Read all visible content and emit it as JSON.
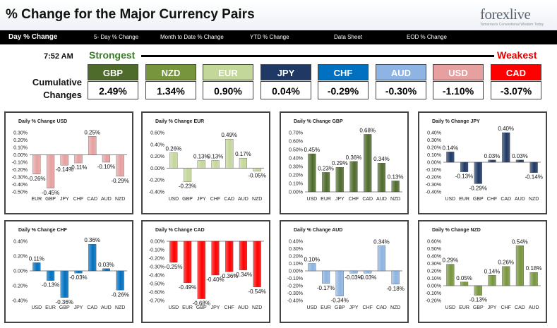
{
  "header": {
    "title": "% Change for the Major Currency Pairs",
    "logo_text": "forexlive",
    "logo_tagline": "Tomorrow's Conventional Wisdom Today"
  },
  "nav": {
    "items": [
      "Day % Change",
      "5- Day % Change",
      "Month to Date % Change",
      "YTD % Change",
      "Data Sheet",
      "EOD % Change"
    ]
  },
  "summary": {
    "time": "7:52 AM",
    "strongest_label": "Strongest",
    "weakest_label": "Weakest",
    "cumulative_label_line1": "Cumulative",
    "cumulative_label_line2": "Changes",
    "currencies": [
      {
        "code": "GBP",
        "value": "2.49%",
        "color": "#4e6b2b"
      },
      {
        "code": "NZD",
        "value": "1.34%",
        "color": "#77953d"
      },
      {
        "code": "EUR",
        "value": "0.90%",
        "color": "#c4d79b"
      },
      {
        "code": "JPY",
        "value": "0.04%",
        "color": "#1f3864"
      },
      {
        "code": "CHF",
        "value": "-0.29%",
        "color": "#0070c0"
      },
      {
        "code": "AUD",
        "value": "-0.30%",
        "color": "#8db4e2"
      },
      {
        "code": "USD",
        "value": "-1.10%",
        "color": "#e6a0a0"
      },
      {
        "code": "CAD",
        "value": "-3.07%",
        "color": "#ff0000"
      }
    ]
  },
  "chart_data": [
    {
      "type": "bar",
      "title": "Daily % Change USD",
      "categories": [
        "EUR",
        "GBP",
        "JPY",
        "CHF",
        "CAD",
        "AUD",
        "NZD"
      ],
      "values": [
        -0.26,
        -0.45,
        -0.14,
        -0.11,
        0.25,
        -0.1,
        -0.29
      ],
      "value_labels": [
        "-0.26%",
        "-0.45%",
        "-0.14%",
        "-0.11%",
        "0.25%",
        "-0.10%",
        "-0.29%"
      ],
      "ylim": [
        -0.5,
        0.3
      ],
      "yticks": [
        "0.30%",
        "0.20%",
        "0.10%",
        "0.00%",
        "-0.10%",
        "-0.20%",
        "-0.30%",
        "-0.40%",
        "-0.50%"
      ],
      "color": "#e6a0a0"
    },
    {
      "type": "bar",
      "title": "Daily % Change EUR",
      "categories": [
        "USD",
        "GBP",
        "JPY",
        "CHF",
        "CAD",
        "AUD",
        "NZD"
      ],
      "values": [
        0.26,
        -0.23,
        0.13,
        0.13,
        0.49,
        0.17,
        -0.05
      ],
      "value_labels": [
        "0.26%",
        "-0.23%",
        "0.13%",
        "0.13%",
        "0.49%",
        "0.17%",
        "-0.05%"
      ],
      "ylim": [
        -0.4,
        0.6
      ],
      "yticks": [
        "0.60%",
        "0.40%",
        "0.20%",
        "0.00%",
        "-0.20%",
        "-0.40%"
      ],
      "color": "#c4d79b"
    },
    {
      "type": "bar",
      "title": "Daily % Change GBP",
      "categories": [
        "USD",
        "EUR",
        "JPY",
        "CHF",
        "CAD",
        "AUD",
        "NZD"
      ],
      "values": [
        0.45,
        0.23,
        0.29,
        0.36,
        0.68,
        0.34,
        0.13
      ],
      "value_labels": [
        "0.45%",
        "0.23%",
        "0.29%",
        "0.36%",
        "0.68%",
        "0.34%",
        "0.13%"
      ],
      "ylim": [
        0,
        0.7
      ],
      "yticks": [
        "0.70%",
        "0.60%",
        "0.50%",
        "0.40%",
        "0.30%",
        "0.20%",
        "0.10%",
        "0.00%"
      ],
      "color": "#4e6b2b"
    },
    {
      "type": "bar",
      "title": "Daily % Change JPY",
      "categories": [
        "USD",
        "EUR",
        "GBP",
        "CHF",
        "CAD",
        "AUD",
        "NZD"
      ],
      "values": [
        0.14,
        -0.13,
        -0.29,
        0.03,
        0.4,
        0.03,
        -0.14
      ],
      "value_labels": [
        "0.14%",
        "-0.13%",
        "-0.29%",
        "0.03%",
        "0.40%",
        "0.03%",
        "-0.14%"
      ],
      "ylim": [
        -0.4,
        0.4
      ],
      "yticks": [
        "0.40%",
        "0.30%",
        "0.20%",
        "0.10%",
        "0.00%",
        "-0.10%",
        "-0.20%",
        "-0.30%",
        "-0.40%"
      ],
      "color": "#1f3864"
    },
    {
      "type": "bar",
      "title": "Daily % Change CHF",
      "categories": [
        "USD",
        "EUR",
        "GBP",
        "JPY",
        "CAD",
        "AUD",
        "NZD"
      ],
      "values": [
        0.11,
        -0.13,
        -0.36,
        -0.03,
        0.36,
        0.03,
        -0.26
      ],
      "value_labels": [
        "0.11%",
        "-0.13%",
        "-0.36%",
        "-0.03%",
        "0.36%",
        "0.03%",
        "-0.26%"
      ],
      "ylim": [
        -0.4,
        0.4
      ],
      "yticks": [
        "0.40%",
        "0.20%",
        "0.00%",
        "-0.20%",
        "-0.40%"
      ],
      "color": "#0070c0"
    },
    {
      "type": "bar",
      "title": "Daily % Change CAD",
      "categories": [
        "USD",
        "EUR",
        "GBP",
        "JPY",
        "CHF",
        "AUD",
        "NZD"
      ],
      "values": [
        -0.25,
        -0.49,
        -0.68,
        -0.4,
        -0.36,
        -0.34,
        -0.54
      ],
      "value_labels": [
        "-0.25%",
        "-0.49%",
        "-0.68%",
        "-0.40%",
        "-0.36%",
        "-0.34%",
        "-0.54%"
      ],
      "ylim": [
        -0.7,
        0
      ],
      "yticks": [
        "0.00%",
        "-0.10%",
        "-0.20%",
        "-0.30%",
        "-0.40%",
        "-0.50%",
        "-0.60%",
        "-0.70%"
      ],
      "color": "#ff0000"
    },
    {
      "type": "bar",
      "title": "Daily % Change AUD",
      "categories": [
        "USD",
        "EUR",
        "GBP",
        "JPY",
        "CHF",
        "CAD",
        "NZD"
      ],
      "values": [
        0.1,
        -0.17,
        -0.34,
        -0.03,
        -0.03,
        0.34,
        -0.18
      ],
      "value_labels": [
        "0.10%",
        "-0.17%",
        "-0.34%",
        "-0.03%",
        "-0.03%",
        "0.34%",
        "-0.18%"
      ],
      "ylim": [
        -0.4,
        0.4
      ],
      "yticks": [
        "0.40%",
        "0.30%",
        "0.20%",
        "0.10%",
        "0.00%",
        "-0.10%",
        "-0.20%",
        "-0.30%",
        "-0.40%"
      ],
      "color": "#8db4e2"
    },
    {
      "type": "bar",
      "title": "Daily % Change NZD",
      "categories": [
        "USD",
        "EUR",
        "GBP",
        "JPY",
        "CHF",
        "CAD",
        "AUD"
      ],
      "values": [
        0.29,
        0.05,
        -0.13,
        0.14,
        0.26,
        0.54,
        0.18
      ],
      "value_labels": [
        "0.29%",
        "0.05%",
        "-0.13%",
        "0.14%",
        "0.26%",
        "0.54%",
        "0.18%"
      ],
      "ylim": [
        -0.2,
        0.6
      ],
      "yticks": [
        "0.60%",
        "0.50%",
        "0.40%",
        "0.30%",
        "0.20%",
        "0.10%",
        "0.00%",
        "-0.10%",
        "-0.20%"
      ],
      "color": "#77953d"
    }
  ]
}
